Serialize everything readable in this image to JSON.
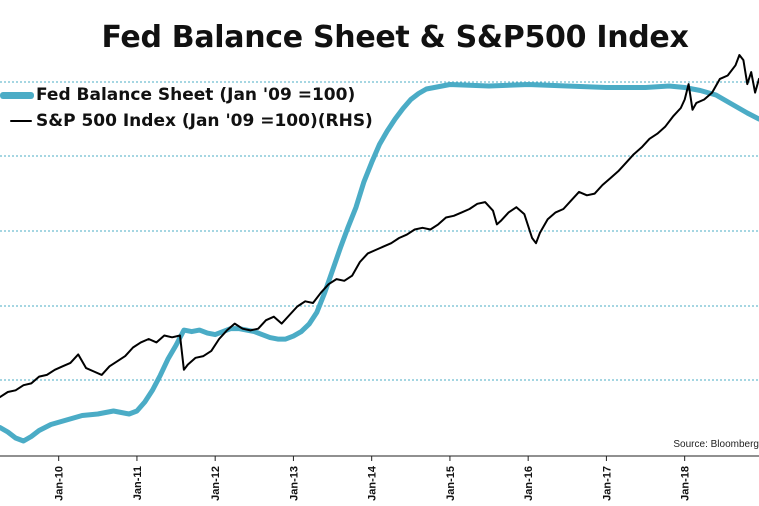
{
  "chart_data": {
    "type": "line",
    "title": "Fed Balance Sheet & S&P500 Index",
    "source": "Source: Bloomberg",
    "x_tick_labels": [
      "Jan-10",
      "Jan-11",
      "Jan-12",
      "Jan-13",
      "Jan-14",
      "Jan-15",
      "Jan-16",
      "Jan-17",
      "Jan-18"
    ],
    "x_tick_years": [
      2010,
      2011,
      2012,
      2013,
      2014,
      2015,
      2016,
      2017,
      2018
    ],
    "xlim": [
      2009.25,
      2018.95
    ],
    "grid": "horizontal dotted",
    "legend_position": "top-left",
    "colors": {
      "fed": "#4bacc6",
      "spx": "#000000",
      "grid": "#4bacc6"
    },
    "series": [
      {
        "name": "Fed Balance Sheet (Jan '09 =100)",
        "axis": "left",
        "color": "#4bacc6",
        "x": [
          2009.25,
          2009.35,
          2009.45,
          2009.55,
          2009.65,
          2009.75,
          2009.9,
          2010.1,
          2010.3,
          2010.5,
          2010.6,
          2010.7,
          2010.8,
          2010.9,
          2011.0,
          2011.1,
          2011.2,
          2011.3,
          2011.4,
          2011.5,
          2011.6,
          2011.7,
          2011.8,
          2011.9,
          2012.0,
          2012.1,
          2012.2,
          2012.3,
          2012.4,
          2012.5,
          2012.6,
          2012.7,
          2012.8,
          2012.9,
          2013.0,
          2013.1,
          2013.2,
          2013.3,
          2013.4,
          2013.5,
          2013.6,
          2013.7,
          2013.8,
          2013.9,
          2014.0,
          2014.1,
          2014.2,
          2014.3,
          2014.4,
          2014.5,
          2014.6,
          2014.7,
          2014.8,
          2014.9,
          2015.0,
          2015.5,
          2016.0,
          2016.5,
          2017.0,
          2017.5,
          2017.8,
          2018.0,
          2018.2,
          2018.4,
          2018.6,
          2018.8,
          2018.95
        ],
        "values": [
          95,
          92,
          88,
          86,
          89,
          93,
          97,
          100,
          103,
          104,
          105,
          106,
          105,
          104,
          106,
          112,
          120,
          130,
          141,
          150,
          160,
          159,
          160,
          158,
          157,
          159,
          161,
          161,
          160,
          159,
          157,
          155,
          154,
          154,
          156,
          159,
          164,
          172,
          185,
          200,
          215,
          229,
          242,
          259,
          272,
          284,
          293,
          301,
          308,
          314,
          318,
          321,
          322,
          323,
          324,
          323,
          324,
          323,
          322,
          322,
          323,
          322,
          320,
          317,
          311,
          305,
          301
        ]
      },
      {
        "name": "S&P 500 Index  (Jan '09 =100)(RHS)",
        "axis": "right",
        "color": "#000000",
        "x": [
          2009.25,
          2009.35,
          2009.45,
          2009.55,
          2009.65,
          2009.75,
          2009.85,
          2009.95,
          2010.05,
          2010.15,
          2010.25,
          2010.35,
          2010.45,
          2010.55,
          2010.65,
          2010.75,
          2010.85,
          2010.95,
          2011.05,
          2011.15,
          2011.25,
          2011.35,
          2011.45,
          2011.55,
          2011.6,
          2011.65,
          2011.75,
          2011.85,
          2011.95,
          2012.05,
          2012.15,
          2012.25,
          2012.35,
          2012.45,
          2012.55,
          2012.65,
          2012.75,
          2012.85,
          2012.95,
          2013.05,
          2013.15,
          2013.25,
          2013.35,
          2013.45,
          2013.55,
          2013.65,
          2013.75,
          2013.85,
          2013.95,
          2014.05,
          2014.15,
          2014.25,
          2014.35,
          2014.45,
          2014.55,
          2014.65,
          2014.75,
          2014.85,
          2014.95,
          2015.05,
          2015.15,
          2015.25,
          2015.35,
          2015.45,
          2015.55,
          2015.6,
          2015.65,
          2015.75,
          2015.85,
          2015.95,
          2016.05,
          2016.1,
          2016.15,
          2016.25,
          2016.35,
          2016.45,
          2016.55,
          2016.65,
          2016.75,
          2016.85,
          2016.95,
          2017.05,
          2017.15,
          2017.25,
          2017.35,
          2017.45,
          2017.55,
          2017.65,
          2017.75,
          2017.85,
          2017.95,
          2018.0,
          2018.05,
          2018.1,
          2018.15,
          2018.25,
          2018.35,
          2018.45,
          2018.55,
          2018.65,
          2018.7,
          2018.75,
          2018.8,
          2018.85,
          2018.9,
          2018.95
        ],
        "values": [
          97,
          100,
          101,
          104,
          105,
          109,
          110,
          113,
          115,
          117,
          122,
          114,
          112,
          110,
          115,
          118,
          121,
          126,
          129,
          131,
          129,
          133,
          132,
          133,
          113,
          116,
          120,
          121,
          124,
          131,
          136,
          140,
          137,
          136,
          137,
          142,
          144,
          140,
          145,
          150,
          153,
          152,
          158,
          163,
          166,
          165,
          168,
          176,
          181,
          183,
          185,
          187,
          190,
          192,
          195,
          196,
          195,
          198,
          202,
          203,
          205,
          207,
          210,
          211,
          206,
          198,
          200,
          205,
          208,
          204,
          190,
          187,
          193,
          201,
          205,
          207,
          212,
          217,
          215,
          216,
          221,
          225,
          229,
          234,
          239,
          243,
          248,
          251,
          255,
          261,
          266,
          271,
          280,
          265,
          269,
          271,
          275,
          283,
          285,
          291,
          297,
          294,
          280,
          287,
          275,
          283
        ]
      }
    ]
  }
}
